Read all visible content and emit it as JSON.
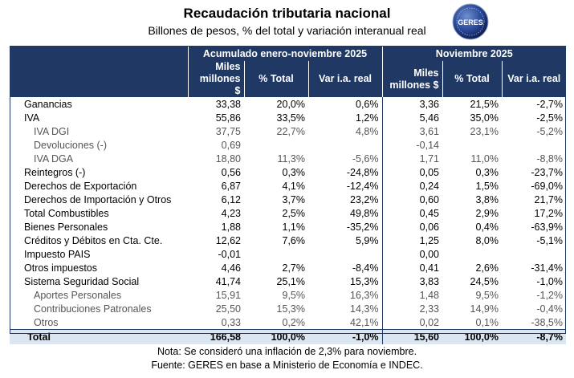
{
  "title": "Recaudación tributaria nacional",
  "subtitle": "Billones de pesos, % del total y variación interanual real",
  "logo_text": "GERES",
  "header": {
    "group1": "Acumulado enero-noviembre 2025",
    "group2": "Noviembre 2025",
    "col_miles_line1": "Miles",
    "col_miles_line2": "millones $",
    "col_pct": "% Total",
    "col_var": "Var i.a. real"
  },
  "rows": [
    {
      "label": "Ganancias",
      "sub": false,
      "a": "33,38",
      "b": "20,0%",
      "c": "0,6%",
      "d": "3,36",
      "e": "21,5%",
      "f": "-2,7%"
    },
    {
      "label": "IVA",
      "sub": false,
      "a": "55,86",
      "b": "33,5%",
      "c": "1,2%",
      "d": "5,46",
      "e": "35,0%",
      "f": "-2,5%"
    },
    {
      "label": "IVA DGI",
      "sub": true,
      "a": "37,75",
      "b": "22,7%",
      "c": "4,8%",
      "d": "3,61",
      "e": "23,1%",
      "f": "-5,2%"
    },
    {
      "label": "Devoluciones (-)",
      "sub": true,
      "a": "0,69",
      "b": "",
      "c": "",
      "d": "-0,14",
      "e": "",
      "f": ""
    },
    {
      "label": "IVA DGA",
      "sub": true,
      "a": "18,80",
      "b": "11,3%",
      "c": "-5,6%",
      "d": "1,71",
      "e": "11,0%",
      "f": "-8,8%"
    },
    {
      "label": "Reintegros (-)",
      "sub": false,
      "a": "0,56",
      "b": "0,3%",
      "c": "-24,8%",
      "d": "0,05",
      "e": "0,3%",
      "f": "-23,7%"
    },
    {
      "label": "Derechos de Exportación",
      "sub": false,
      "a": "6,87",
      "b": "4,1%",
      "c": "-12,4%",
      "d": "0,24",
      "e": "1,5%",
      "f": "-69,0%"
    },
    {
      "label": "Derechos de Importación y Otros",
      "sub": false,
      "a": "6,12",
      "b": "3,7%",
      "c": "23,2%",
      "d": "0,60",
      "e": "3,8%",
      "f": "21,7%"
    },
    {
      "label": "Total Combustibles",
      "sub": false,
      "a": "4,23",
      "b": "2,5%",
      "c": "49,8%",
      "d": "0,45",
      "e": "2,9%",
      "f": "17,2%"
    },
    {
      "label": "Bienes Personales",
      "sub": false,
      "a": "1,88",
      "b": "1,1%",
      "c": "-35,2%",
      "d": "0,06",
      "e": "0,4%",
      "f": "-63,9%"
    },
    {
      "label": "Créditos y Débitos en Cta. Cte.",
      "sub": false,
      "a": "12,62",
      "b": "7,6%",
      "c": "5,9%",
      "d": "1,25",
      "e": "8,0%",
      "f": "-5,1%"
    },
    {
      "label": "Impuesto PAIS",
      "sub": false,
      "a": "-0,01",
      "b": "",
      "c": "",
      "d": "0,00",
      "e": "",
      "f": ""
    },
    {
      "label": "Otros impuestos",
      "sub": false,
      "a": "4,46",
      "b": "2,7%",
      "c": "-8,4%",
      "d": "0,41",
      "e": "2,6%",
      "f": "-31,4%"
    },
    {
      "label": "Sistema Seguridad Social",
      "sub": false,
      "a": "41,74",
      "b": "25,1%",
      "c": "15,3%",
      "d": "3,83",
      "e": "24,5%",
      "f": "-1,0%"
    },
    {
      "label": "Aportes Personales",
      "sub": true,
      "a": "15,91",
      "b": "9,5%",
      "c": "16,3%",
      "d": "1,48",
      "e": "9,5%",
      "f": "-1,2%"
    },
    {
      "label": "Contribuciones Patronales",
      "sub": true,
      "a": "25,50",
      "b": "15,3%",
      "c": "14,3%",
      "d": "2,33",
      "e": "14,9%",
      "f": "-0,4%"
    },
    {
      "label": "Otros",
      "sub": true,
      "a": "0,33",
      "b": "0,2%",
      "c": "42,1%",
      "d": "0,02",
      "e": "0,1%",
      "f": "-38,5%"
    }
  ],
  "total": {
    "label": "Total",
    "a": "166,58",
    "b": "100,0%",
    "c": "-1,0%",
    "d": "15,60",
    "e": "100,0%",
    "f": "-8,7%"
  },
  "note": "Nota: Se consideró una inflación de 2,3% para noviembre.",
  "source": "Fuente: GERES en base a Ministerio de Economía e INDEC.",
  "colors": {
    "header": "#1f3864",
    "total_bg": "#dce6f1",
    "sub_text": "#555555"
  }
}
